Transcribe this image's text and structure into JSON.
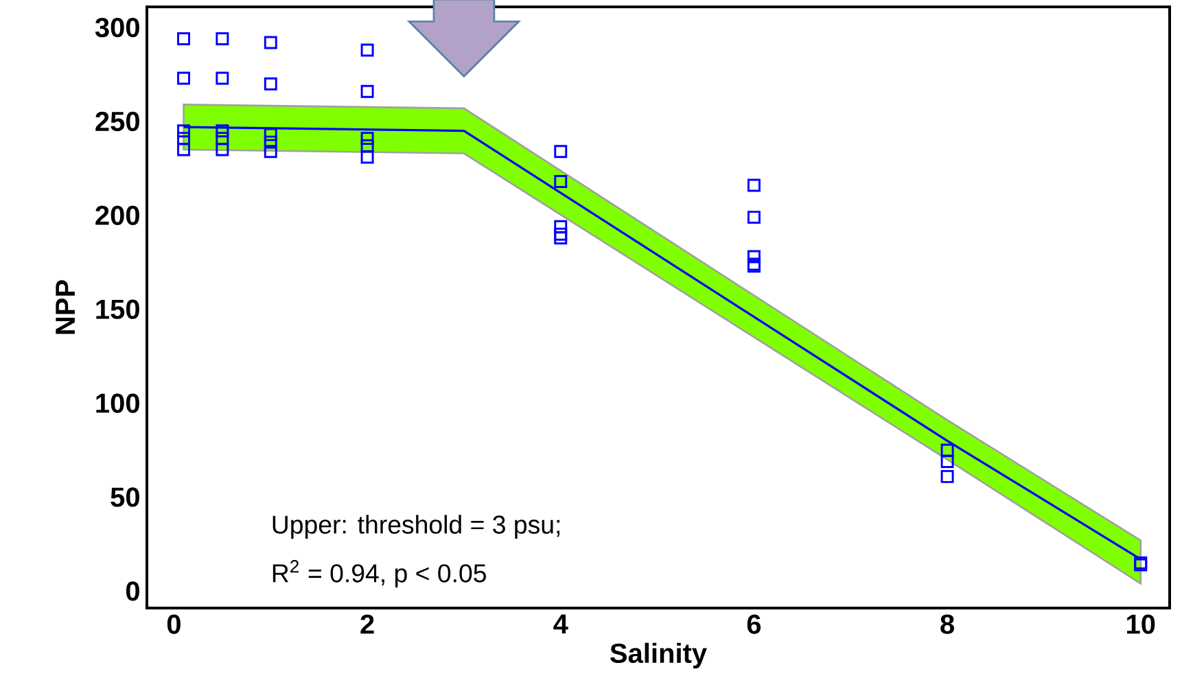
{
  "chart_data": {
    "type": "scatter",
    "xlabel": "Salinity",
    "ylabel": "NPP",
    "xlim": [
      -0.28,
      10.3
    ],
    "ylim": [
      -9,
      311
    ],
    "xticks": [
      0,
      2,
      4,
      6,
      8,
      10
    ],
    "yticks": [
      0,
      50,
      100,
      150,
      200,
      250,
      300
    ],
    "grid": false,
    "annotations": [
      "Upper: threshold = 3 psu;",
      "R$^{2}$ = 0.94, p < 0.05"
    ],
    "series": [
      {
        "color": "#0000ff",
        "marker": "square",
        "x": [
          0.1,
          0.1,
          0.1,
          0.1,
          0.1,
          0.5,
          0.5,
          0.5,
          0.5,
          0.5,
          1,
          1,
          1,
          1,
          1,
          2,
          2,
          2,
          2,
          2,
          4,
          4,
          4,
          4,
          4,
          6,
          6,
          6,
          6,
          6,
          8,
          8,
          8,
          10,
          10
        ],
        "values": [
          294,
          273,
          245,
          241,
          235,
          294,
          273,
          245,
          241,
          235,
          292,
          270,
          243,
          239,
          234,
          288,
          266,
          241,
          237,
          231,
          234,
          218,
          194,
          190,
          188,
          216,
          199,
          178,
          174,
          173,
          75,
          69,
          61,
          15,
          14
        ]
      },
      {
        "type": "line",
        "color": "#0000ff",
        "marker": "none",
        "x": [
          0.1,
          3,
          8,
          10
        ],
        "values": [
          247,
          245,
          80,
          17
        ],
        "lower": [
          235,
          233,
          70,
          4
        ],
        "upper": [
          259,
          257,
          91,
          27
        ]
      }
    ]
  }
}
